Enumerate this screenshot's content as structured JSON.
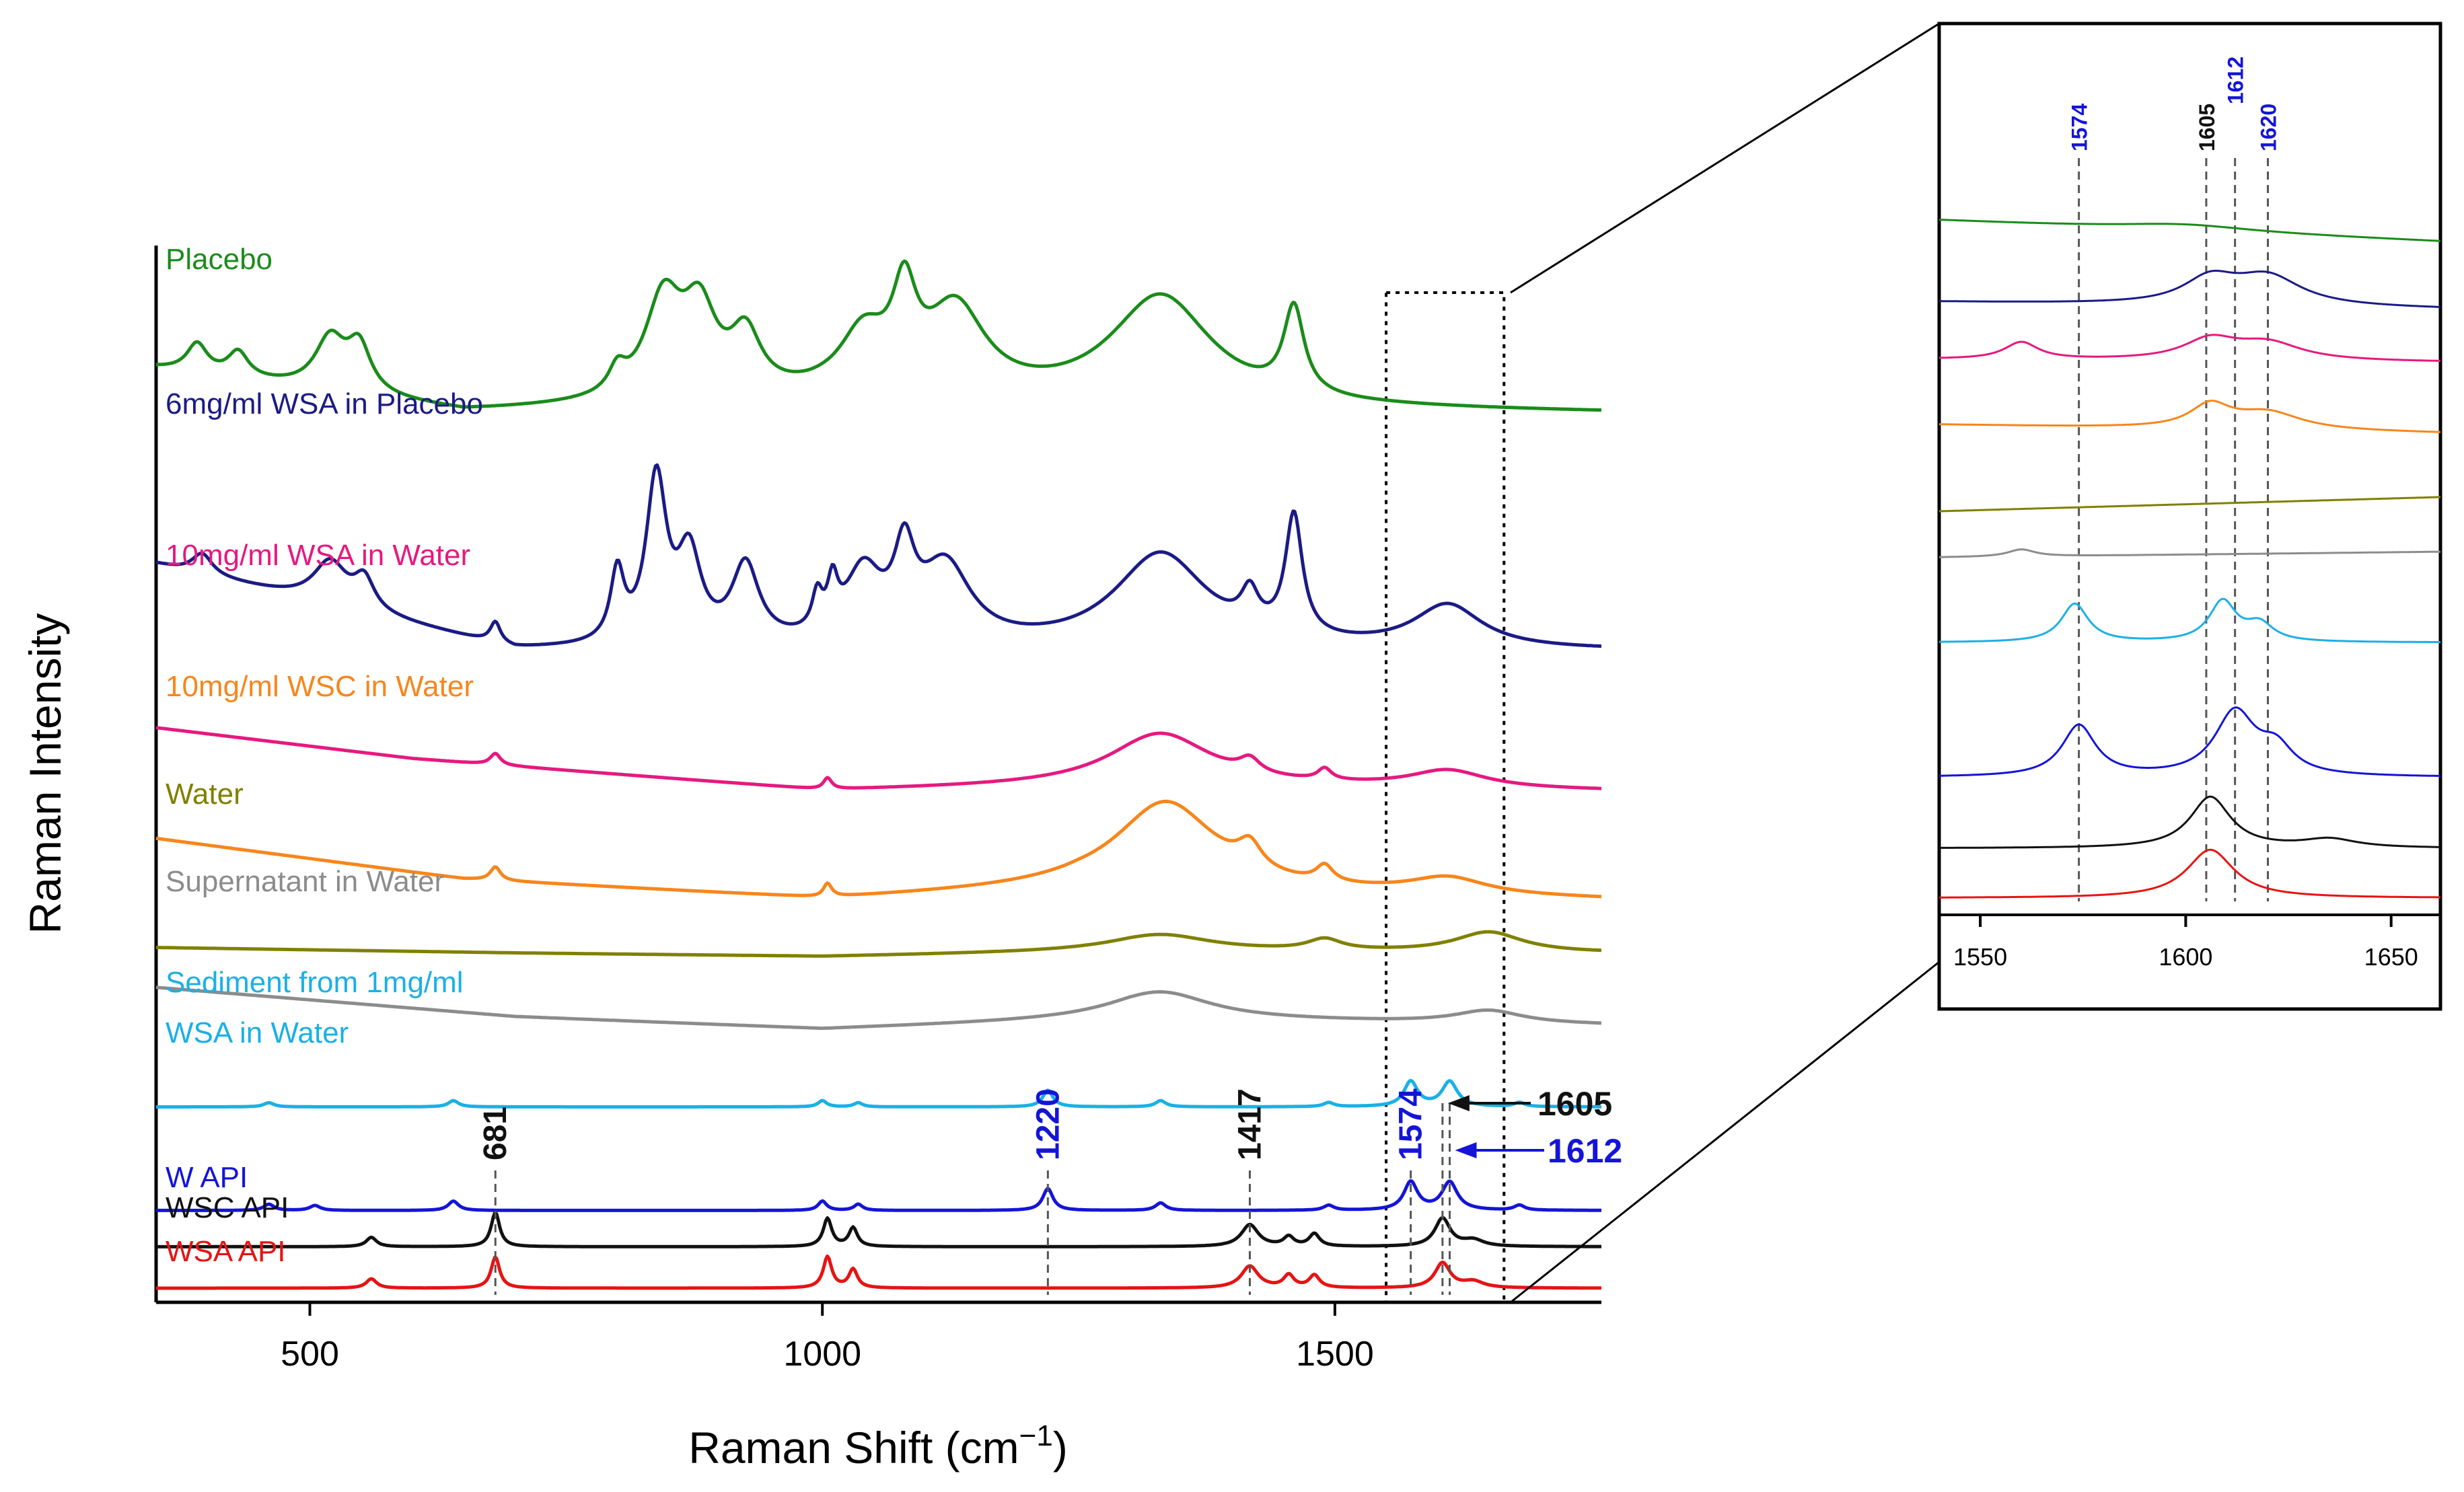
{
  "chart_data": [
    {
      "type": "line",
      "panel": "main",
      "xlabel": "Raman Shift (cm",
      "xlabel_sup": "−1",
      "xlabel_close": ")",
      "ylabel": "Raman Intensity",
      "xlim": [
        350,
        1760
      ],
      "xticks": [
        500,
        1000,
        1500
      ],
      "series": [
        {
          "name": "Placebo",
          "color": "#1a8c1a",
          "offset": 0.845,
          "amp": 0.11,
          "peaks": [
            [
              390,
              12,
              0.25
            ],
            [
              430,
              12,
              0.22
            ],
            [
              520,
              18,
              0.45
            ],
            [
              548,
              14,
              0.4
            ],
            [
              800,
              10,
              0.2
            ],
            [
              845,
              22,
              0.85
            ],
            [
              880,
              20,
              0.7
            ],
            [
              925,
              18,
              0.5
            ],
            [
              1040,
              28,
              0.5
            ],
            [
              1080,
              14,
              0.75
            ],
            [
              1130,
              35,
              0.75
            ],
            [
              1330,
              60,
              0.95
            ],
            [
              1460,
              12,
              0.75
            ]
          ],
          "base": [
            [
              350,
              0.38
            ],
            [
              650,
              0.0
            ],
            [
              1000,
              0.1
            ],
            [
              1300,
              0.05
            ],
            [
              1760,
              0.0
            ]
          ]
        },
        {
          "name": "6mg/ml WSA in Placebo",
          "color": "#1b1b86",
          "offset": 0.615,
          "amp": 0.165,
          "peaks": [
            [
              395,
              12,
              0.12
            ],
            [
              520,
              20,
              0.25
            ],
            [
              553,
              12,
              0.18
            ],
            [
              681,
              6,
              0.12
            ],
            [
              800,
              8,
              0.4
            ],
            [
              838,
              12,
              0.95
            ],
            [
              870,
              14,
              0.5
            ],
            [
              925,
              16,
              0.45
            ],
            [
              995,
              6,
              0.2
            ],
            [
              1010,
              6,
              0.25
            ],
            [
              1040,
              22,
              0.4
            ],
            [
              1080,
              12,
              0.45
            ],
            [
              1120,
              30,
              0.45
            ],
            [
              1330,
              55,
              0.55
            ],
            [
              1417,
              10,
              0.2
            ],
            [
              1460,
              10,
              0.7
            ],
            [
              1610,
              40,
              0.25
            ]
          ],
          "base": [
            [
              350,
              0.5
            ],
            [
              700,
              0.0
            ],
            [
              1000,
              0.0
            ],
            [
              1300,
              0.0
            ],
            [
              1760,
              0.0
            ]
          ]
        },
        {
          "name": "10mg/ml WSA in Water",
          "color": "#e6197f",
          "offset": 0.48,
          "amp": 0.11,
          "peaks": [
            [
              681,
              6,
              0.1
            ],
            [
              1005,
              5,
              0.1
            ],
            [
              1330,
              60,
              0.45
            ],
            [
              1417,
              12,
              0.12
            ],
            [
              1490,
              8,
              0.1
            ],
            [
              1610,
              45,
              0.15
            ]
          ],
          "base": [
            [
              350,
              0.55
            ],
            [
              600,
              0.28
            ],
            [
              1000,
              0.0
            ],
            [
              1300,
              0.05
            ],
            [
              1760,
              0.0
            ]
          ]
        },
        {
          "name": "10mg/ml WSC in Water",
          "color": "#f7861c",
          "offset": 0.375,
          "amp": 0.13,
          "peaks": [
            [
              681,
              6,
              0.1
            ],
            [
              1005,
              5,
              0.1
            ],
            [
              1335,
              60,
              0.65
            ],
            [
              1417,
              14,
              0.18
            ],
            [
              1490,
              10,
              0.12
            ],
            [
              1610,
              45,
              0.12
            ]
          ],
          "base": [
            [
              350,
              0.45
            ],
            [
              650,
              0.15
            ],
            [
              1000,
              0.0
            ],
            [
              1250,
              0.08
            ],
            [
              1760,
              0.0
            ]
          ]
        },
        {
          "name": "Water",
          "color": "#808000",
          "offset": 0.32,
          "amp": 0.035,
          "peaks": [
            [
              1330,
              60,
              0.45
            ],
            [
              1490,
              20,
              0.3
            ],
            [
              1650,
              40,
              0.55
            ]
          ],
          "base": [
            [
              350,
              0.25
            ],
            [
              700,
              0.1
            ],
            [
              1000,
              0.0
            ],
            [
              1300,
              0.15
            ],
            [
              1760,
              0.1
            ]
          ]
        },
        {
          "name": "Supernatant in Water",
          "color": "#8c8c8c",
          "offset": 0.25,
          "amp": 0.04,
          "peaks": [
            [
              1330,
              60,
              0.65
            ],
            [
              1650,
              40,
              0.3
            ]
          ],
          "base": [
            [
              350,
              1.0
            ],
            [
              700,
              0.3
            ],
            [
              1000,
              0.0
            ],
            [
              1300,
              0.25
            ],
            [
              1760,
              0.1
            ]
          ]
        },
        {
          "name": "Sediment from 1mg/ml",
          "name2": "WSA in Water",
          "color": "#1ab0e6",
          "offset": 0.175,
          "amp": 0.04,
          "peaks": [
            [
              460,
              6,
              0.1
            ],
            [
              640,
              6,
              0.15
            ],
            [
              1000,
              5,
              0.15
            ],
            [
              1035,
              5,
              0.1
            ],
            [
              1220,
              6,
              0.4
            ],
            [
              1330,
              6,
              0.15
            ],
            [
              1494,
              6,
              0.1
            ],
            [
              1574,
              8,
              0.6
            ],
            [
              1612,
              9,
              0.6
            ],
            [
              1680,
              6,
              0.1
            ]
          ],
          "base": []
        },
        {
          "name": "W API",
          "color": "#1414d9",
          "offset": 0.075,
          "amp": 0.06,
          "peaks": [
            [
              460,
              6,
              0.1
            ],
            [
              505,
              6,
              0.08
            ],
            [
              640,
              6,
              0.15
            ],
            [
              1000,
              5,
              0.15
            ],
            [
              1035,
              5,
              0.1
            ],
            [
              1220,
              6,
              0.35
            ],
            [
              1330,
              6,
              0.12
            ],
            [
              1494,
              6,
              0.08
            ],
            [
              1574,
              8,
              0.45
            ],
            [
              1612,
              9,
              0.45
            ],
            [
              1680,
              6,
              0.08
            ]
          ],
          "base": []
        },
        {
          "name": "WSC API",
          "color": "#111111",
          "offset": 0.04,
          "amp": 0.06,
          "peaks": [
            [
              560,
              6,
              0.15
            ],
            [
              681,
              5,
              0.55
            ],
            [
              1005,
              5,
              0.45
            ],
            [
              1030,
              5,
              0.3
            ],
            [
              1417,
              10,
              0.35
            ],
            [
              1455,
              6,
              0.15
            ],
            [
              1480,
              6,
              0.2
            ],
            [
              1605,
              9,
              0.45
            ],
            [
              1635,
              12,
              0.1
            ]
          ],
          "base": []
        },
        {
          "name": "WSA API",
          "color": "#e61414",
          "offset": 0.0,
          "amp": 0.06,
          "peaks": [
            [
              560,
              6,
              0.15
            ],
            [
              681,
              5,
              0.5
            ],
            [
              1005,
              5,
              0.5
            ],
            [
              1030,
              5,
              0.3
            ],
            [
              1417,
              10,
              0.35
            ],
            [
              1455,
              6,
              0.2
            ],
            [
              1480,
              6,
              0.2
            ],
            [
              1605,
              9,
              0.4
            ],
            [
              1635,
              12,
              0.1
            ]
          ],
          "base": []
        }
      ],
      "annotations": [
        {
          "label": "681",
          "x": 681,
          "color": "#111111"
        },
        {
          "label": "1220",
          "x": 1220,
          "color": "#1414d9"
        },
        {
          "label": "1417",
          "x": 1417,
          "color": "#111111"
        },
        {
          "label": "1574",
          "x": 1574,
          "color": "#1414d9"
        },
        {
          "label": "1605",
          "x": 1605,
          "color": "#111111",
          "arrow": true
        },
        {
          "label": "1612",
          "x": 1612,
          "color": "#1414d9",
          "arrow": true
        }
      ],
      "zoom_box_x": [
        1550,
        1665
      ]
    },
    {
      "type": "line",
      "panel": "inset",
      "xlim": [
        1540,
        1662
      ],
      "xticks": [
        1550,
        1600,
        1650
      ],
      "guide_lines": [
        {
          "label": "1574",
          "x": 1574,
          "color": "#1414d9"
        },
        {
          "label": "1605",
          "x": 1605,
          "color": "#111111"
        },
        {
          "label": "1612",
          "x": 1612,
          "color": "#1414d9"
        },
        {
          "label": "1620",
          "x": 1620,
          "color": "#1414d9"
        }
      ],
      "series": [
        {
          "name": "Placebo",
          "color": "#1a8c1a",
          "offset": 0.925,
          "amp": 0.03,
          "peaks": [
            [
              1600,
              20,
              0.3
            ]
          ],
          "base": [
            [
              1540,
              1.0
            ],
            [
              1662,
              0.0
            ]
          ]
        },
        {
          "name": "6mg/ml WSA in Placebo",
          "color": "#1b1b86",
          "offset": 0.83,
          "amp": 0.05,
          "peaks": [
            [
              1606,
              8,
              0.7
            ],
            [
              1620,
              10,
              0.8
            ]
          ],
          "base": [
            [
              1540,
              0.2
            ],
            [
              1662,
              0.0
            ]
          ]
        },
        {
          "name": "10mg/ml WSA in Water",
          "color": "#e6197f",
          "offset": 0.755,
          "amp": 0.04,
          "peaks": [
            [
              1560,
              5,
              0.6
            ],
            [
              1606,
              8,
              0.7
            ],
            [
              1620,
              10,
              0.6
            ]
          ],
          "base": [
            [
              1540,
              0.1
            ],
            [
              1662,
              0.0
            ]
          ]
        },
        {
          "name": "10mg/ml WSC in Water",
          "color": "#f7861c",
          "offset": 0.655,
          "amp": 0.04,
          "peaks": [
            [
              1606,
              6,
              0.8
            ],
            [
              1620,
              10,
              0.6
            ]
          ],
          "base": [
            [
              1540,
              0.3
            ],
            [
              1662,
              0.0
            ]
          ]
        },
        {
          "name": "Water",
          "color": "#808000",
          "offset": 0.545,
          "amp": 0.02,
          "peaks": [],
          "base": [
            [
              1540,
              0.0
            ],
            [
              1662,
              1.0
            ]
          ]
        },
        {
          "name": "Supernatant in Water",
          "color": "#8c8c8c",
          "offset": 0.48,
          "amp": 0.02,
          "peaks": [
            [
              1560,
              4,
              0.5
            ]
          ],
          "base": [
            [
              1540,
              0.0
            ],
            [
              1662,
              0.4
            ]
          ]
        },
        {
          "name": "Sediment from 1mg/ml WSA in Water",
          "color": "#1ab0e6",
          "offset": 0.36,
          "amp": 0.06,
          "peaks": [
            [
              1573,
              4,
              0.9
            ],
            [
              1609,
              4,
              0.95
            ],
            [
              1618,
              4,
              0.4
            ]
          ],
          "base": []
        },
        {
          "name": "W API",
          "color": "#1414d9",
          "offset": 0.17,
          "amp": 0.09,
          "peaks": [
            [
              1574,
              5,
              0.8
            ],
            [
              1612,
              6,
              1.0
            ],
            [
              1622,
              5,
              0.4
            ]
          ],
          "base": []
        },
        {
          "name": "WSC API",
          "color": "#111111",
          "offset": 0.07,
          "amp": 0.08,
          "peaks": [
            [
              1606,
              6,
              0.9
            ],
            [
              1635,
              8,
              0.15
            ]
          ],
          "base": []
        },
        {
          "name": "WSA API",
          "color": "#e61414",
          "offset": 0.0,
          "amp": 0.08,
          "peaks": [
            [
              1606,
              7,
              0.85
            ]
          ],
          "base": []
        }
      ]
    }
  ]
}
